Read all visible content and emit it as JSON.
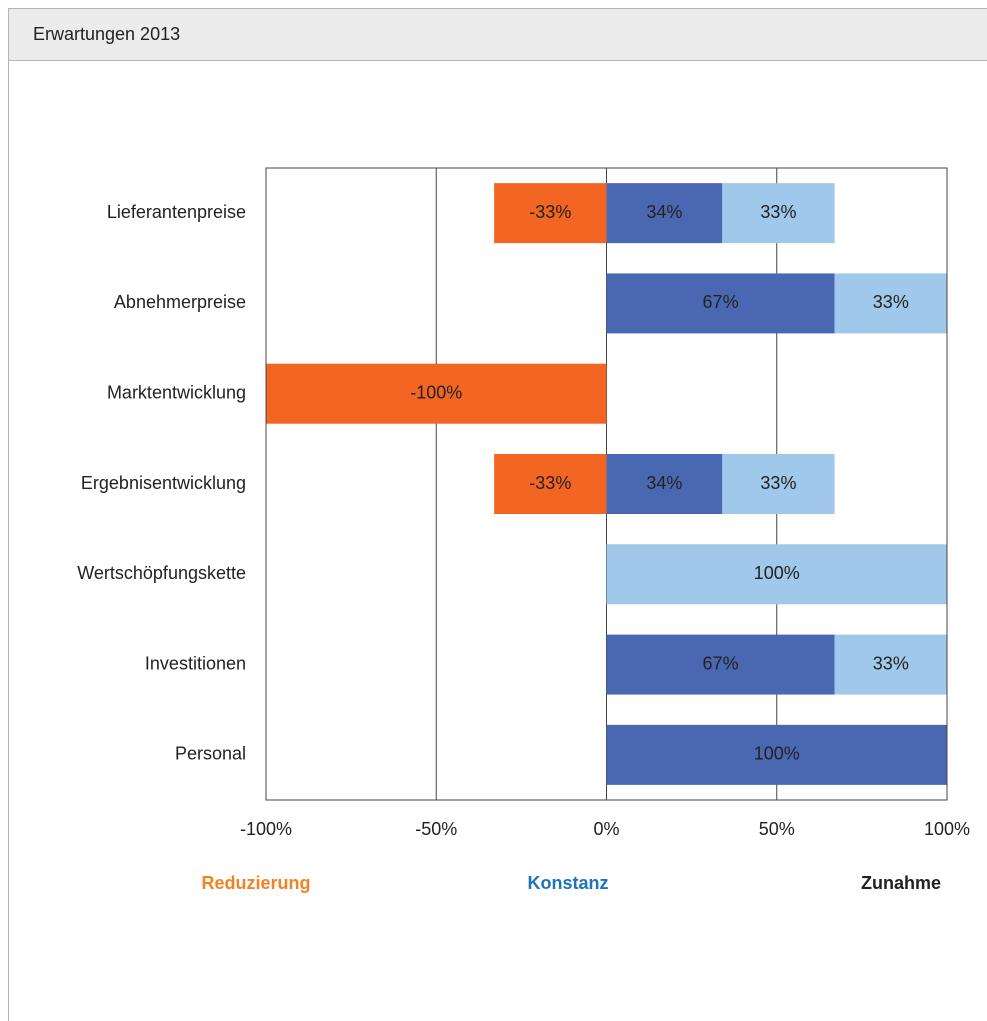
{
  "header": {
    "title": "Erwartungen 2013"
  },
  "chart_data": {
    "type": "stacked-barh",
    "categories": [
      "Lieferantenpreise",
      "Abnehmerpreise",
      "Marktentwicklung",
      "Ergebnisentwicklung",
      "Wertschöpfungskette",
      "Investitionen",
      "Personal"
    ],
    "series": [
      {
        "name": "Reduzierung",
        "color": "#f26522",
        "legend_color": "#f58220",
        "values": [
          -33,
          null,
          -100,
          -33,
          null,
          null,
          null
        ],
        "value_labels": [
          "-33%",
          null,
          "-100%",
          "-33%",
          null,
          null,
          null
        ]
      },
      {
        "name": "Konstanz",
        "color": "#4a67b1",
        "legend_color": "#1b75bc",
        "values": [
          34,
          67,
          null,
          34,
          null,
          67,
          100
        ],
        "value_labels": [
          "34%",
          "67%",
          null,
          "34%",
          null,
          "67%",
          "100%"
        ]
      },
      {
        "name": "Zunahme",
        "color": "#9fc8ea",
        "legend_color": "#222222",
        "values": [
          33,
          33,
          null,
          33,
          100,
          33,
          null
        ],
        "value_labels": [
          "33%",
          "33%",
          null,
          "33%",
          "100%",
          "33%",
          null
        ]
      }
    ],
    "xlim": [
      -100,
      100
    ],
    "xticks": [
      {
        "value": -100,
        "label": "-100%"
      },
      {
        "value": -50,
        "label": "-50%"
      },
      {
        "value": 0,
        "label": "0%"
      },
      {
        "value": 50,
        "label": "50%"
      },
      {
        "value": 100,
        "label": "100%"
      }
    ],
    "grid": true,
    "legend": "bottom"
  }
}
